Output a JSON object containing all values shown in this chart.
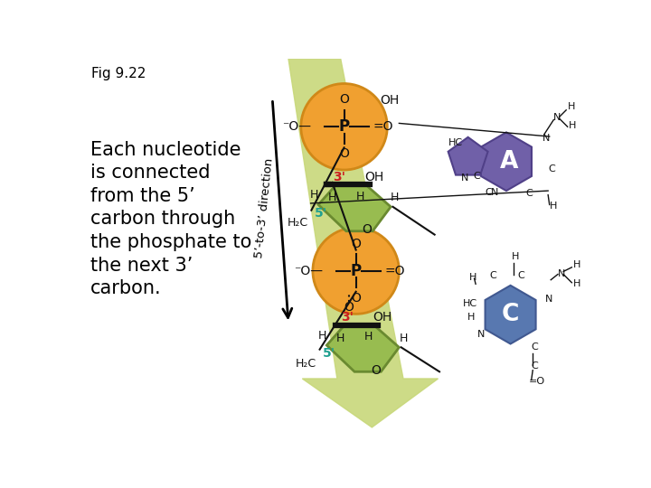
{
  "title": "Fig 9.22",
  "bg_color": "#ffffff",
  "label_text": "Each nucleotide\nis connected\nfrom the 5’\ncarbon through\nthe phosphate to\nthe next 3’\ncarbon.",
  "direction_label": "5’-to-3’ direction",
  "arrow_color": "#c8d87a",
  "phosphate_fill": "#f0a030",
  "phosphate_edge": "#d08818",
  "sugar_fill": "#98bc50",
  "sugar_edge": "#6a8a30",
  "base_A_fill": "#7060a8",
  "base_A_edge": "#504088",
  "base_C_fill": "#5878b0",
  "base_C_edge": "#405890",
  "prime5_color": "#20a090",
  "prime3_color": "#cc2020",
  "struct_color": "#111111",
  "fig_label_size": 11,
  "body_text_size": 15
}
